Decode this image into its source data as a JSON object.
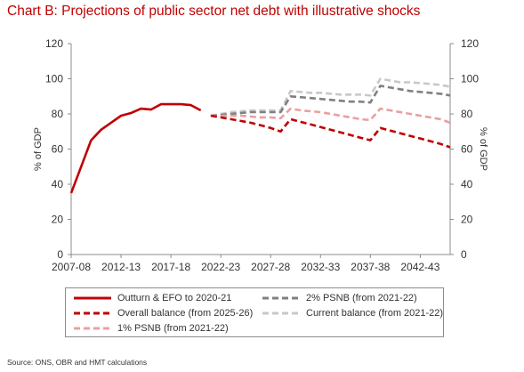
{
  "title": "Chart B: Projections of public sector net debt with illustrative shocks",
  "source": "Source: ONS, OBR and HMT calculations",
  "chart_data": {
    "type": "line",
    "title": "Chart B: Projections of public sector net debt with illustrative shocks",
    "ylabel": "% of GDP",
    "ylabel_right": "% of GDP",
    "ylim": [
      0,
      120
    ],
    "y_ticks": [
      0,
      20,
      40,
      60,
      80,
      100,
      120
    ],
    "x_tick_labels": [
      "2007-08",
      "2012-13",
      "2017-18",
      "2022-23",
      "2027-28",
      "2032-33",
      "2037-38",
      "2042-43"
    ],
    "x_range": [
      2007,
      2045
    ],
    "grid": false,
    "legend_position": "bottom",
    "series": [
      {
        "name": "Outturn & EFO to 2020-21",
        "color": "#c00000",
        "style": "solid",
        "x": [
          2007,
          2008,
          2009,
          2010,
          2011,
          2012,
          2013,
          2014,
          2015,
          2016,
          2017,
          2018,
          2019,
          2020
        ],
        "values": [
          35,
          50,
          65,
          71,
          75,
          79,
          80.5,
          83,
          82.5,
          85.5,
          85.5,
          85.5,
          85,
          82
        ]
      },
      {
        "name": "Overall balance (from 2025-26)",
        "color": "#c00000",
        "style": "dashed",
        "x": [
          2021,
          2022,
          2023,
          2024,
          2025,
          2026,
          2027,
          2028,
          2029,
          2030,
          2031,
          2032,
          2033,
          2034,
          2035,
          2036,
          2037,
          2038,
          2039,
          2040,
          2041,
          2042,
          2043,
          2044,
          2045
        ],
        "values": [
          79,
          78,
          77,
          76,
          75,
          73.5,
          72,
          70,
          77,
          75.5,
          74,
          72.5,
          71,
          69.5,
          68,
          66.5,
          65,
          72,
          70.5,
          69,
          67.5,
          66,
          64.5,
          63,
          61
        ]
      },
      {
        "name": "1% PSNB (from 2021-22)",
        "color": "#e8a0a0",
        "style": "dashed",
        "x": [
          2021,
          2022,
          2023,
          2024,
          2025,
          2026,
          2027,
          2028,
          2029,
          2030,
          2031,
          2032,
          2033,
          2034,
          2035,
          2036,
          2037,
          2038,
          2039,
          2040,
          2041,
          2042,
          2043,
          2044,
          2045
        ],
        "values": [
          79,
          79,
          79,
          79,
          78.5,
          78,
          78,
          77.5,
          83,
          82,
          81.5,
          81,
          80,
          79,
          78,
          77,
          76.5,
          83,
          82,
          81,
          80,
          79,
          78,
          77,
          75
        ]
      },
      {
        "name": "2% PSNB (from 2021-22)",
        "color": "#808080",
        "style": "dashed",
        "x": [
          2021,
          2022,
          2023,
          2024,
          2025,
          2026,
          2027,
          2028,
          2029,
          2030,
          2031,
          2032,
          2033,
          2034,
          2035,
          2036,
          2037,
          2038,
          2039,
          2040,
          2041,
          2042,
          2043,
          2044,
          2045
        ],
        "values": [
          79,
          79.5,
          80,
          80.5,
          81,
          81,
          81,
          81,
          90,
          89.5,
          89,
          88.5,
          88,
          87.5,
          87,
          87,
          86.5,
          96,
          95,
          94,
          93,
          92.5,
          92,
          91.5,
          90.5
        ]
      },
      {
        "name": "Current balance (from 2021-22)",
        "color": "#c8c8c8",
        "style": "dashed",
        "x": [
          2021,
          2022,
          2023,
          2024,
          2025,
          2026,
          2027,
          2028,
          2029,
          2030,
          2031,
          2032,
          2033,
          2034,
          2035,
          2036,
          2037,
          2038,
          2039,
          2040,
          2041,
          2042,
          2043,
          2044,
          2045
        ],
        "values": [
          79,
          80,
          81,
          81.5,
          82,
          82,
          82,
          82,
          93,
          92.5,
          92,
          92,
          91.5,
          91,
          91,
          91,
          90.5,
          100,
          99,
          98,
          98,
          97.5,
          97,
          96.5,
          95.5
        ]
      }
    ]
  }
}
